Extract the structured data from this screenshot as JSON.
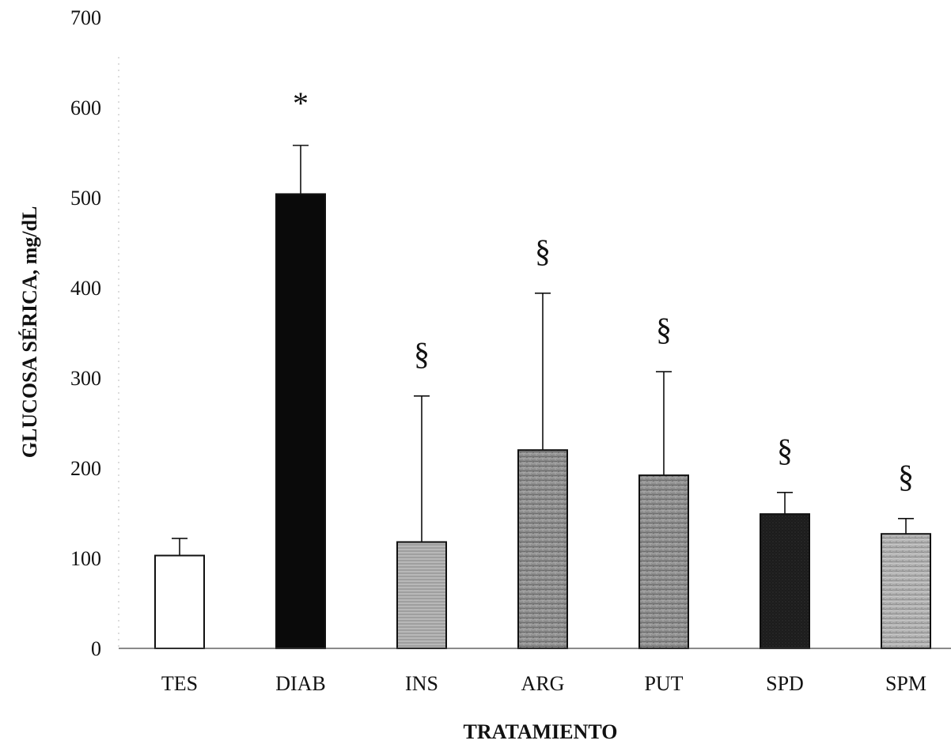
{
  "chart_data": {
    "type": "bar",
    "title": "",
    "xlabel": "TRATAMIENTO",
    "ylabel": "GLUCOSA SÉRICA, mg/dL",
    "ylim": [
      0,
      700
    ],
    "yticks": [
      0,
      100,
      200,
      300,
      400,
      500,
      600,
      700
    ],
    "grid": false,
    "legend": "none",
    "categories": [
      "TES",
      "DIAB",
      "INS",
      "ARG",
      "PUT",
      "SPD",
      "SPM"
    ],
    "values": [
      103,
      504,
      118,
      220,
      192,
      149,
      127
    ],
    "error_upper": [
      122,
      558,
      280,
      394,
      307,
      173,
      144
    ],
    "annotations": [
      "",
      "*",
      "§",
      "§",
      "§",
      "§",
      "§"
    ],
    "bar_fills": [
      "white",
      "black",
      "light-gray-hatched",
      "mid-gray-textured",
      "mid-gray-textured",
      "dark-gray",
      "light-gray-textured"
    ],
    "colors": {
      "white": "#ffffff",
      "black": "#0a0a0a",
      "light-gray-hatched": "#b8b8b8",
      "mid-gray-textured": "#8e8e8e",
      "dark-gray": "#1e1e1e",
      "light-gray-textured": "#b0b0b0"
    }
  }
}
